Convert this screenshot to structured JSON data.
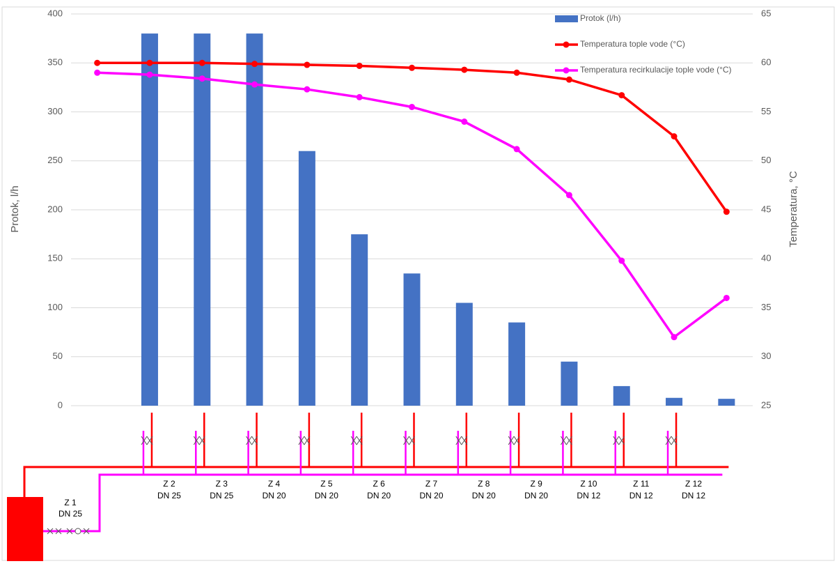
{
  "chart_data": {
    "type": "combo",
    "categories": [
      null,
      null,
      null,
      null,
      null,
      null,
      null,
      null,
      null,
      null,
      null,
      null,
      null
    ],
    "series": [
      {
        "name": "Protok (l/h)",
        "type": "bar",
        "color": "#4472c4",
        "values": [
          null,
          380,
          380,
          380,
          260,
          175,
          135,
          105,
          85,
          45,
          20,
          8,
          7
        ]
      },
      {
        "name": "Temperatura tople vode (°C)",
        "type": "line",
        "axis": "y2",
        "color": "#ff0000",
        "values": [
          60,
          60,
          60,
          59.9,
          59.8,
          59.7,
          59.5,
          59.3,
          59,
          58.3,
          56.7,
          52.5,
          44.8
        ]
      },
      {
        "name": "Temperatura recirkulacije tople vode (°C)",
        "type": "line",
        "axis": "y2",
        "color": "#ff00ff",
        "values": [
          59,
          58.8,
          58.4,
          57.8,
          57.3,
          56.5,
          55.5,
          54,
          51.2,
          46.5,
          39.8,
          32,
          36
        ]
      }
    ],
    "ylabel": "Protok, l/h",
    "y2label": "Temperatura, °C",
    "ylim": [
      0,
      400
    ],
    "yticks": [
      0,
      50,
      100,
      150,
      200,
      250,
      300,
      350,
      400
    ],
    "y2lim": [
      25,
      65
    ],
    "y2ticks": [
      25,
      30,
      35,
      40,
      45,
      50,
      55,
      60,
      65
    ],
    "grid": true,
    "legend": "top-right"
  },
  "diagram": {
    "zones": [
      {
        "name": "Z 1",
        "dn": "DN 25"
      },
      {
        "name": "Z 2",
        "dn": "DN 25"
      },
      {
        "name": "Z 3",
        "dn": "DN 25"
      },
      {
        "name": "Z 4",
        "dn": "DN 20"
      },
      {
        "name": "Z 5",
        "dn": "DN 20"
      },
      {
        "name": "Z 6",
        "dn": "DN 20"
      },
      {
        "name": "Z 7",
        "dn": "DN 20"
      },
      {
        "name": "Z 8",
        "dn": "DN 20"
      },
      {
        "name": "Z 9",
        "dn": "DN 20"
      },
      {
        "name": "Z 10",
        "dn": "DN 12"
      },
      {
        "name": "Z 11",
        "dn": "DN 12"
      },
      {
        "name": "Z 12",
        "dn": "DN 12"
      }
    ]
  }
}
